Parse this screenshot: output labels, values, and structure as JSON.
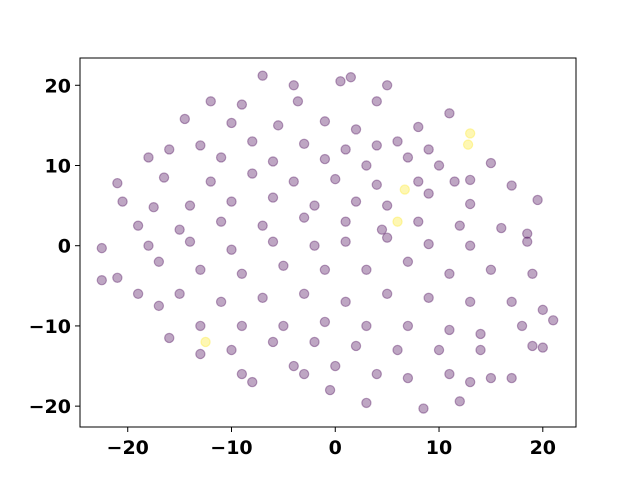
{
  "chart_data": {
    "type": "scatter",
    "xlim": [
      -24.6,
      23.2
    ],
    "ylim": [
      -22.6,
      23.4
    ],
    "xticks": [
      {
        "value": -20,
        "label": "−20"
      },
      {
        "value": -10,
        "label": "−10"
      },
      0,
      10,
      20
    ],
    "yticks": [
      {
        "value": -20,
        "label": "−20"
      },
      {
        "value": -10,
        "label": "−10"
      },
      0,
      10,
      20
    ],
    "series": [
      {
        "color": "#440154",
        "x": [
          -12,
          -7,
          -4,
          -3.6,
          0.5,
          1.5,
          5,
          4,
          -9,
          -14.5,
          -10,
          -5.5,
          -1,
          2,
          8,
          11,
          6,
          -16,
          -13,
          -8,
          -3,
          1,
          4,
          9,
          15,
          -18,
          -11,
          -6,
          -1,
          3,
          7,
          10,
          13,
          -21,
          -16.5,
          -12,
          -8,
          -4,
          0,
          4,
          8,
          11.5,
          17,
          -20.5,
          -17.5,
          -14,
          -10,
          -6,
          -2,
          2,
          5,
          9,
          13,
          19.5,
          -19,
          -15,
          -11,
          -7,
          -3,
          1,
          4.5,
          8,
          12,
          16,
          18.5,
          -22.5,
          -18,
          -14,
          -10,
          -6,
          -2,
          1,
          5,
          9,
          13,
          18.5,
          -21,
          -17,
          -13,
          -9,
          -5,
          -1,
          3,
          7,
          11,
          15,
          19,
          -22.5,
          -19,
          -15,
          -11,
          -7,
          -3,
          1,
          5,
          9,
          13,
          17,
          20,
          -17,
          -13,
          -9,
          -5,
          -1,
          3,
          7,
          11,
          14,
          18,
          21,
          -16,
          -10,
          -6,
          -2,
          2,
          6,
          10,
          14,
          19,
          20,
          -13,
          -9,
          -4,
          0,
          4,
          7,
          11,
          15,
          17,
          -8,
          -3,
          -0.5,
          3,
          8.5,
          12,
          13
        ],
        "y": [
          18,
          21.2,
          20,
          18,
          20.5,
          21,
          20,
          18,
          17.6,
          15.8,
          15.3,
          15,
          15.5,
          14.5,
          14.8,
          16.5,
          13,
          12,
          12.5,
          13,
          12.7,
          12,
          12.5,
          12,
          10.3,
          11,
          11,
          10.5,
          10.8,
          10,
          11,
          10,
          8.2,
          7.8,
          8.5,
          8,
          9,
          8,
          8.3,
          7.6,
          8,
          8,
          7.5,
          5.5,
          4.8,
          5,
          5.5,
          6,
          5,
          5.5,
          5,
          6.5,
          5.2,
          5.7,
          2.5,
          2,
          3,
          2.5,
          3.5,
          3,
          2,
          3,
          2.5,
          2.2,
          1.5,
          -0.3,
          0,
          0.5,
          -0.5,
          0.5,
          0,
          0.5,
          1,
          0.2,
          0,
          0.5,
          -4,
          -2,
          -3,
          -3.5,
          -2.5,
          -3,
          -3,
          -2,
          -3.5,
          -3,
          -3.5,
          -4.3,
          -6,
          -6,
          -7,
          -6.5,
          -6,
          -7,
          -6,
          -6.5,
          -7,
          -7,
          -8,
          -7.5,
          -10,
          -10,
          -10,
          -9.5,
          -10,
          -10,
          -10.5,
          -11,
          -10,
          -9.3,
          -11.5,
          -13,
          -12,
          -12,
          -12.5,
          -13,
          -13,
          -13,
          -12.5,
          -12.7,
          -13.5,
          -16,
          -15,
          -15,
          -16,
          -16.5,
          -16,
          -16.5,
          -16.5,
          -17,
          -16,
          -18,
          -19.6,
          -20.3,
          -19.4,
          -17
        ]
      },
      {
        "color": "#fde725",
        "x": [
          13,
          12.8,
          6.7,
          6,
          -12.5
        ],
        "y": [
          14,
          12.6,
          7,
          3,
          -12
        ]
      }
    ]
  }
}
